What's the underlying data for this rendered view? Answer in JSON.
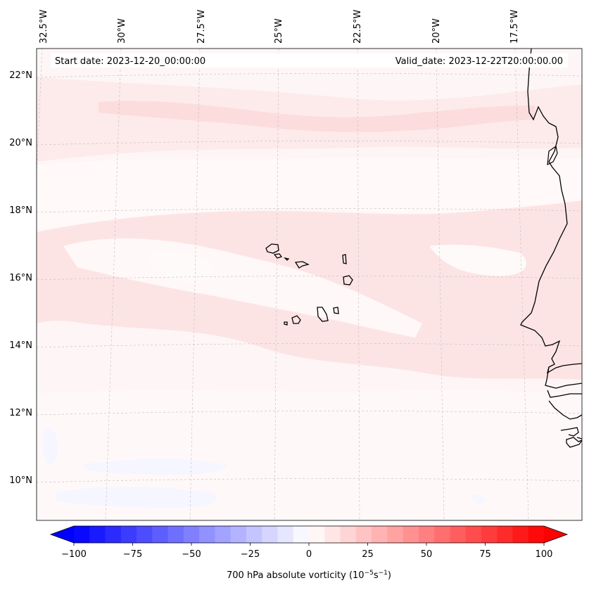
{
  "map": {
    "title_start": "Start date: 2023-12-20_00:00:00",
    "title_valid": "Valid_date: 2023-12-22T20:00:00.00",
    "lon_labels": [
      "32.5°W",
      "30°W",
      "27.5°W",
      "25°W",
      "22.5°W",
      "20°W",
      "17.5°W"
    ],
    "lat_labels": [
      "22°N",
      "20°N",
      "18°N",
      "16°N",
      "14°N",
      "12°N",
      "10°N"
    ],
    "field_colors": {
      "background": "#fef6f6",
      "band_light": "#fde8e8",
      "band_mid": "#fcdede",
      "white_patch": "#fffbfb",
      "blue_patch": "#f6f7ff"
    },
    "coast_color": "#000000",
    "islands": [
      "Santo Antão",
      "São Vicente",
      "São Nicolau",
      "Sal",
      "Boa Vista",
      "Maio",
      "Santiago",
      "Fogo",
      "Brava"
    ]
  },
  "colorbar": {
    "ticks": [
      "−100",
      "−75",
      "−50",
      "−25",
      "0",
      "25",
      "50",
      "75",
      "100"
    ],
    "label": "700 hPa absolute vorticity (10",
    "label_exp1": "−5",
    "label_mid": "s",
    "label_exp2": "−1",
    "label_end": ")",
    "min_color": "#0000ff",
    "max_color": "#ff0000",
    "levels": 30
  }
}
